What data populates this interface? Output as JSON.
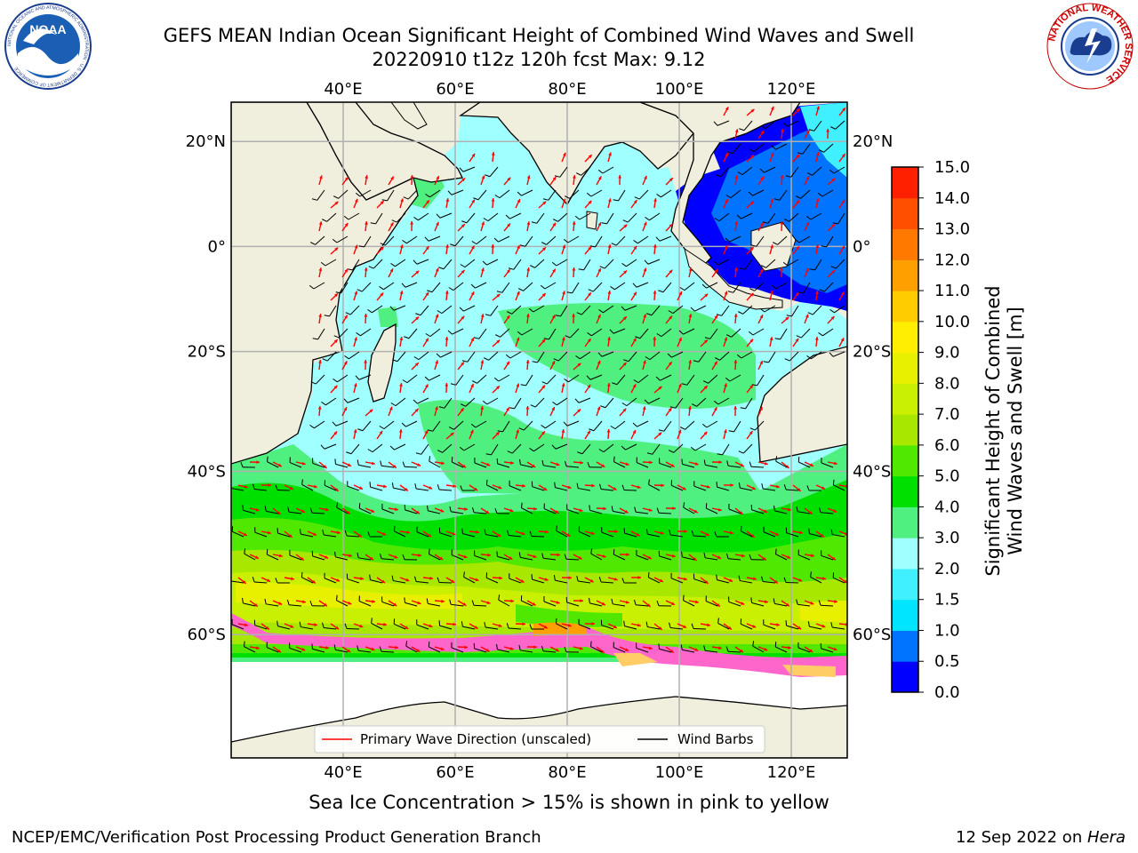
{
  "title": {
    "line1": "GEFS MEAN Indian Ocean Significant Height of Combined Wind Waves and Swell",
    "line2": "20220910 t12z 120h fcst   Max: 9.12"
  },
  "logos": {
    "noaa": {
      "label": "NOAA",
      "ring_text": "NATIONAL OCEANIC AND ATMOSPHERIC ADMINISTRATION · U.S. DEPARTMENT OF COMMERCE",
      "icon": "noaa-logo-icon"
    },
    "nws": {
      "ring_text": "NATIONAL WEATHER SERVICE",
      "icon": "nws-logo-icon"
    }
  },
  "map": {
    "lon_ticks": [
      "40°E",
      "60°E",
      "80°E",
      "100°E",
      "120°E"
    ],
    "lat_ticks": [
      "20°N",
      "0°",
      "20°S",
      "40°S",
      "60°S"
    ],
    "lon_values": [
      40,
      60,
      80,
      100,
      120
    ],
    "lat_values": [
      20,
      0,
      -20,
      -40,
      -60
    ],
    "extent": {
      "lon_min": 20,
      "lon_max": 130,
      "lat_min": -70,
      "lat_max": 27
    },
    "colors": {
      "land": "#f0eedc",
      "coast": "#000000",
      "grid": "#b0b0b0",
      "ice": "#ff66cc",
      "wave_arrow": "#ff0000",
      "wind_barb": "#000000"
    }
  },
  "legend": {
    "primary_wave": "Primary Wave Direction (unscaled)",
    "wind_barbs": "Wind Barbs"
  },
  "colorbar": {
    "label_line1": "Significant Height of Combined",
    "label_line2": "Wind Waves and Swell [m]",
    "ticks": [
      "0.0",
      "0.5",
      "1.0",
      "1.5",
      "2.0",
      "3.0",
      "4.0",
      "5.0",
      "6.0",
      "7.0",
      "8.0",
      "9.0",
      "10.0",
      "11.0",
      "12.0",
      "13.0",
      "14.0",
      "15.0"
    ],
    "colors": [
      "#0000ff",
      "#0073ff",
      "#00e5ff",
      "#40f0ff",
      "#a0ffff",
      "#50f080",
      "#00e000",
      "#50e800",
      "#a8e800",
      "#c8f000",
      "#e8f000",
      "#ffee00",
      "#ffcc00",
      "#ffa000",
      "#ff7800",
      "#ff5000",
      "#ff2000"
    ]
  },
  "caption": "Sea Ice Concentration > 15% is shown in pink to yellow",
  "footer": {
    "left": "NCEP/EMC/Verification Post Processing Product Generation Branch",
    "date": "12 Sep 2022 on ",
    "host": "Hera"
  }
}
